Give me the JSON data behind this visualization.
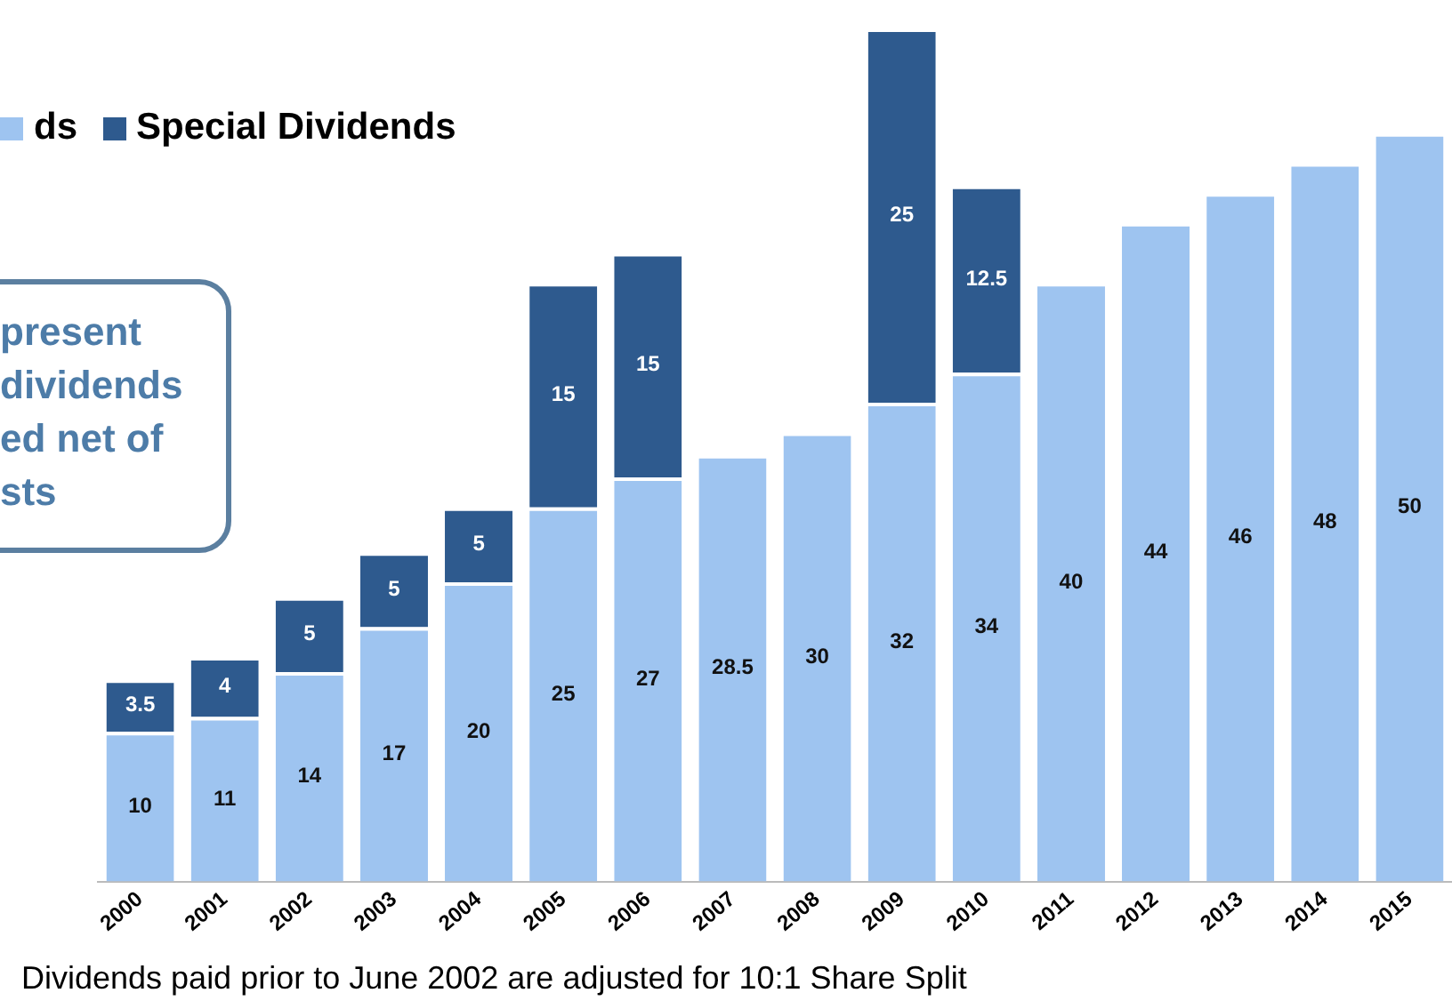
{
  "chart_data": {
    "type": "bar",
    "stacked": true,
    "data_labels": true,
    "legend": "top left",
    "grid": false,
    "categories": [
      "2000",
      "2001",
      "2002",
      "2003",
      "2004",
      "2005",
      "2006",
      "2007",
      "2008",
      "2009",
      "2010",
      "2011",
      "2012",
      "2013",
      "2014",
      "2015"
    ],
    "series": [
      {
        "name": "ds",
        "color": "#9ec4f0",
        "values": [
          10,
          11,
          14,
          17,
          20,
          25,
          27,
          28.5,
          30,
          32,
          34,
          40,
          44,
          46,
          48,
          50
        ]
      },
      {
        "name": "Special Dividends",
        "color": "#2e5a8e",
        "values": [
          3.5,
          4,
          5,
          5,
          5,
          15,
          15,
          null,
          null,
          25,
          12.5,
          null,
          null,
          null,
          null,
          null
        ]
      }
    ],
    "annotations": [
      "present\ndividends\ned net of\nsts",
      "Dividends paid prior to June 2002 are adjusted for 10:1 Share Split"
    ]
  }
}
